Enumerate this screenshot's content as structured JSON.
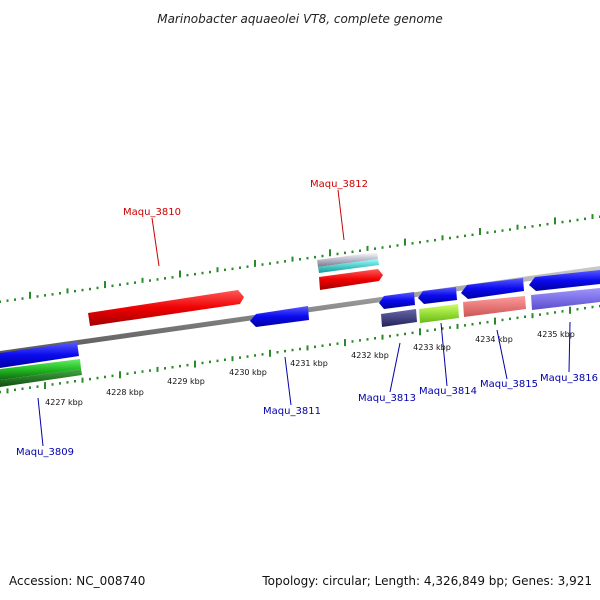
{
  "header": {
    "title": "Marinobacter aquaeolei VT8, complete genome"
  },
  "footer": {
    "accession": "Accession: NC_008740",
    "summary": "Topology: circular; Length: 4,326,849 bp; Genes: 3,921"
  },
  "axis": {
    "ticks": [
      "4227 kbp",
      "4228 kbp",
      "4229 kbp",
      "4230 kbp",
      "4231 kbp",
      "4232 kbp",
      "4233 kbp",
      "4234 kbp",
      "4235 kbp"
    ]
  },
  "genes": [
    {
      "label": "Maqu_3809",
      "strand": "reverse",
      "color": "#0000cc"
    },
    {
      "label": "Maqu_3810",
      "strand": "forward",
      "color": "#dd0000"
    },
    {
      "label": "Maqu_3811",
      "strand": "reverse",
      "color": "#0000cc"
    },
    {
      "label": "Maqu_3812",
      "strand": "forward",
      "color": "#dd0000"
    },
    {
      "label": "Maqu_3813",
      "strand": "reverse",
      "color": "#0000cc"
    },
    {
      "label": "Maqu_3814",
      "strand": "reverse",
      "color": "#0000cc"
    },
    {
      "label": "Maqu_3815",
      "strand": "reverse",
      "color": "#0000cc"
    },
    {
      "label": "Maqu_3816",
      "strand": "reverse",
      "color": "#0000cc"
    }
  ],
  "colors": {
    "backbone": "#888888",
    "tick_mark": "#2a8a2a",
    "forward_gene": "#ee1111",
    "reverse_gene": "#1111dd",
    "forward_label": "#cc0000",
    "reverse_label": "#0000aa"
  }
}
